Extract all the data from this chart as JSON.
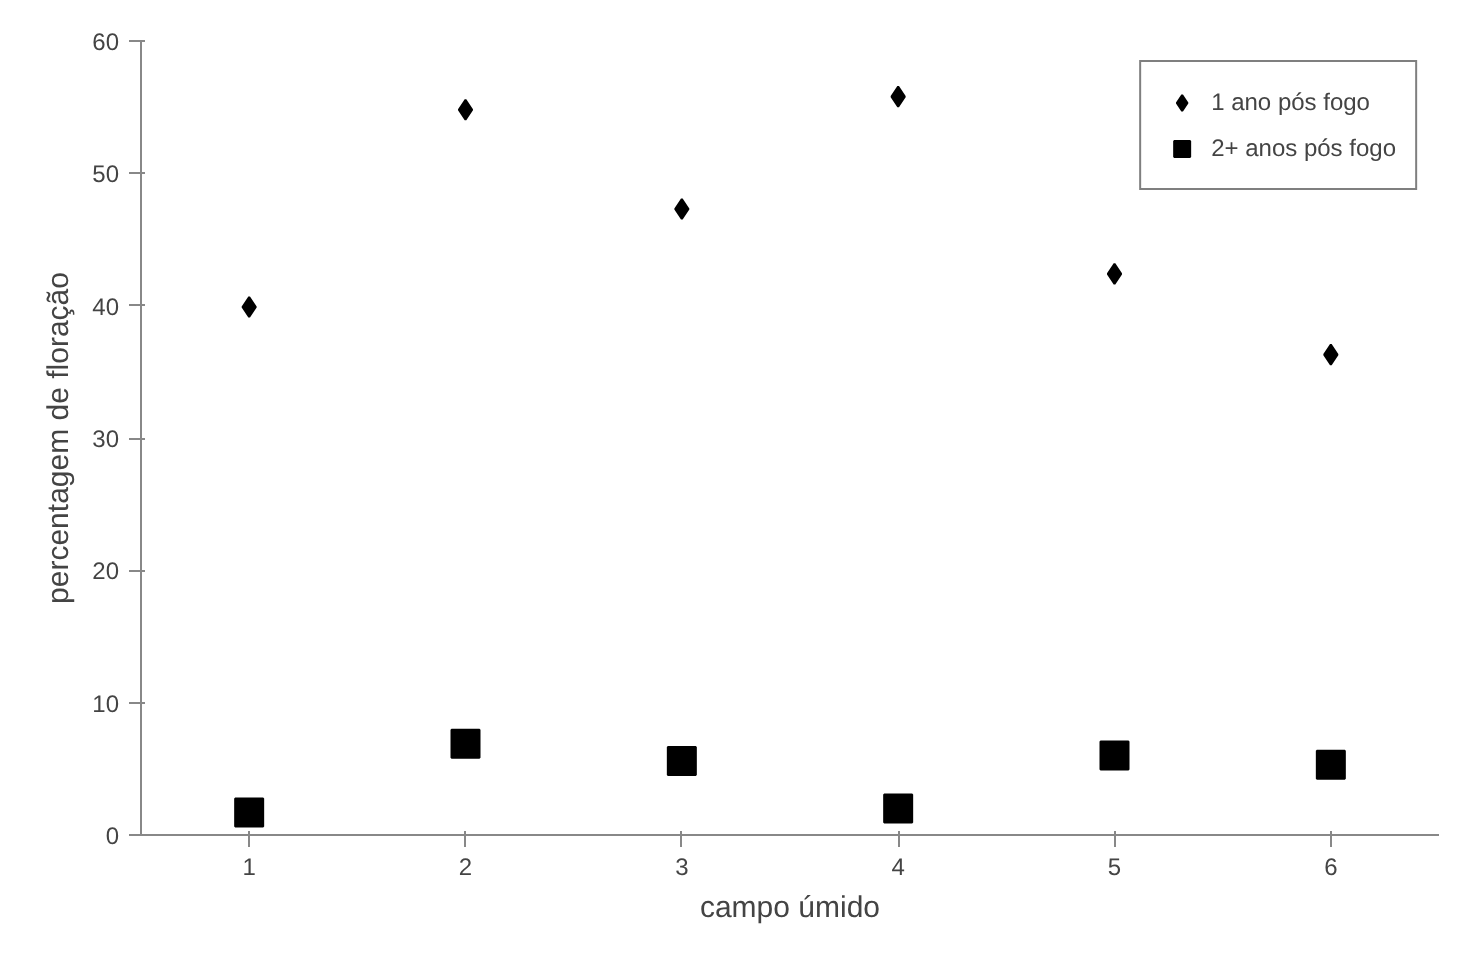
{
  "chart_data": {
    "type": "scatter",
    "xlabel": "campo úmido",
    "ylabel": "percentagem de floração",
    "categories": [
      "1",
      "2",
      "3",
      "4",
      "5",
      "6"
    ],
    "ylim": [
      0,
      60
    ],
    "yticks": [
      0,
      10,
      20,
      30,
      40,
      50,
      60
    ],
    "grid": false,
    "legend": "top right",
    "series": [
      {
        "name": "1 ano pós fogo",
        "color": "#000000",
        "marker": "diamond",
        "values": [
          39.9,
          54.8,
          47.3,
          55.8,
          42.4,
          36.3
        ]
      },
      {
        "name": "2+ anos pós fogo",
        "color": "#000000",
        "marker": "square",
        "values": [
          1.7,
          6.9,
          5.6,
          2.0,
          6.0,
          5.3
        ]
      }
    ]
  }
}
